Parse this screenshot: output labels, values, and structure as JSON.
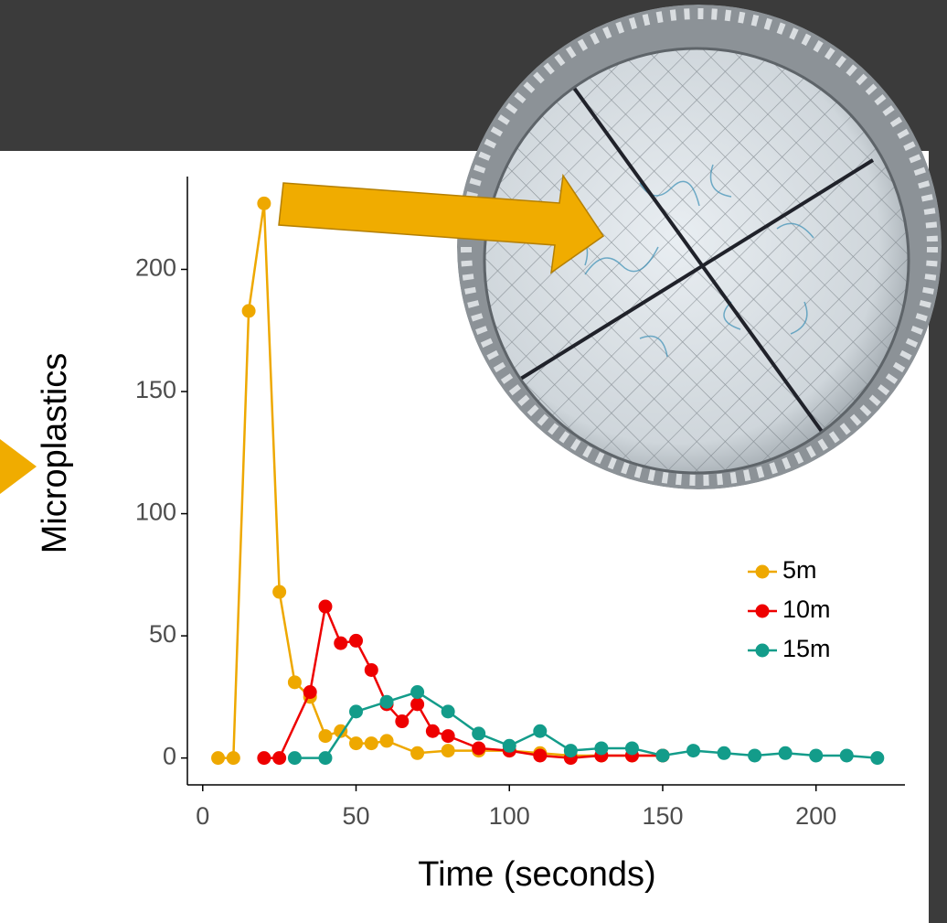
{
  "chart_data": {
    "type": "line",
    "x_label": "Time (seconds)",
    "y_label": "Microplastics",
    "xlim": [
      -5,
      229
    ],
    "ylim": [
      -11,
      238
    ],
    "xticks": [
      0,
      50,
      100,
      150,
      200
    ],
    "yticks": [
      0,
      50,
      100,
      150,
      200
    ],
    "legend": "right",
    "series": [
      {
        "name": "5m",
        "color": "#eea800",
        "x": [
          5,
          10,
          15,
          20,
          25,
          30,
          35,
          40,
          45,
          50,
          55,
          60,
          70,
          80,
          90,
          100,
          110,
          120,
          130,
          140,
          150
        ],
        "values": [
          0,
          0,
          183,
          227,
          68,
          31,
          25,
          9,
          11,
          6,
          6,
          7,
          2,
          3,
          3,
          3,
          2,
          1,
          1,
          1,
          1
        ]
      },
      {
        "name": "10m",
        "color": "#ee0000",
        "x": [
          20,
          25,
          35,
          40,
          45,
          50,
          55,
          60,
          65,
          70,
          75,
          80,
          90,
          100,
          110,
          120,
          130,
          140,
          150
        ],
        "values": [
          0,
          0,
          27,
          62,
          47,
          48,
          36,
          22,
          15,
          22,
          11,
          9,
          4,
          3,
          1,
          0,
          1,
          1,
          1
        ]
      },
      {
        "name": "15m",
        "color": "#139c8a",
        "x": [
          30,
          40,
          50,
          60,
          70,
          80,
          90,
          100,
          110,
          120,
          130,
          140,
          150,
          160,
          170,
          180,
          190,
          200,
          210,
          220
        ],
        "values": [
          0,
          0,
          19,
          23,
          27,
          19,
          10,
          5,
          11,
          3,
          4,
          4,
          1,
          3,
          2,
          1,
          2,
          1,
          1,
          0
        ]
      }
    ]
  }
}
